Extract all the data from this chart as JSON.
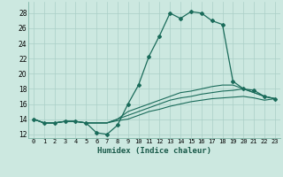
{
  "title": "",
  "xlabel": "Humidex (Indice chaleur)",
  "ylabel": "",
  "bg_color": "#cce8e0",
  "grid_color": "#aacfc7",
  "line_color": "#1a6b5a",
  "xlim": [
    -0.5,
    23.5
  ],
  "ylim": [
    11.5,
    29.5
  ],
  "xticks": [
    0,
    1,
    2,
    3,
    4,
    5,
    6,
    7,
    8,
    9,
    10,
    11,
    12,
    13,
    14,
    15,
    16,
    17,
    18,
    19,
    20,
    21,
    22,
    23
  ],
  "yticks": [
    12,
    14,
    16,
    18,
    20,
    22,
    24,
    26,
    28
  ],
  "series": [
    [
      14.0,
      13.5,
      13.5,
      13.7,
      13.7,
      13.5,
      12.2,
      12.0,
      13.2,
      16.0,
      18.5,
      22.3,
      25.0,
      28.0,
      27.3,
      28.2,
      28.0,
      27.0,
      26.5,
      19.0,
      18.0,
      17.8,
      17.0,
      16.7
    ],
    [
      14.0,
      13.5,
      13.5,
      13.7,
      13.7,
      13.5,
      13.5,
      13.5,
      14.0,
      15.0,
      15.5,
      16.0,
      16.5,
      17.0,
      17.5,
      17.7,
      18.0,
      18.3,
      18.5,
      18.5,
      18.0,
      17.5,
      17.0,
      16.7
    ],
    [
      14.0,
      13.5,
      13.5,
      13.7,
      13.7,
      13.5,
      13.5,
      13.5,
      14.0,
      14.5,
      15.0,
      15.5,
      16.0,
      16.5,
      16.8,
      17.0,
      17.3,
      17.5,
      17.7,
      17.8,
      18.0,
      17.5,
      17.0,
      16.7
    ],
    [
      14.0,
      13.5,
      13.5,
      13.7,
      13.7,
      13.5,
      13.5,
      13.5,
      13.8,
      14.0,
      14.5,
      15.0,
      15.3,
      15.7,
      16.0,
      16.3,
      16.5,
      16.7,
      16.8,
      16.9,
      17.0,
      16.8,
      16.5,
      16.7
    ]
  ]
}
